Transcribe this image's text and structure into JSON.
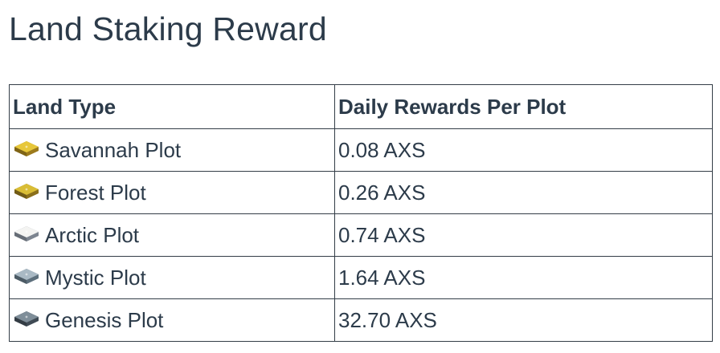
{
  "page": {
    "title": "Land Staking Reward"
  },
  "table": {
    "headers": {
      "land_type": "Land Type",
      "daily_rewards": "Daily Rewards Per Plot"
    },
    "rows": [
      {
        "land_type": "Savannah Plot",
        "daily_rewards": "0.08 AXS",
        "icon": "savannah-plot-icon",
        "icon_top": "#e7c73a",
        "icon_side": "#9c7a1c"
      },
      {
        "land_type": "Forest Plot",
        "daily_rewards": "0.26 AXS",
        "icon": "forest-plot-icon",
        "icon_top": "#d9bd35",
        "icon_side": "#8a6f1b"
      },
      {
        "land_type": "Arctic Plot",
        "daily_rewards": "0.74 AXS",
        "icon": "arctic-plot-icon",
        "icon_top": "#f4f4f2",
        "icon_side": "#7d8590"
      },
      {
        "land_type": "Mystic Plot",
        "daily_rewards": "1.64 AXS",
        "icon": "mystic-plot-icon",
        "icon_top": "#a9b9c4",
        "icon_side": "#5d6f7c"
      },
      {
        "land_type": "Genesis Plot",
        "daily_rewards": "32.70 AXS",
        "icon": "genesis-plot-icon",
        "icon_top": "#7f8e99",
        "icon_side": "#3f4a54"
      }
    ]
  }
}
